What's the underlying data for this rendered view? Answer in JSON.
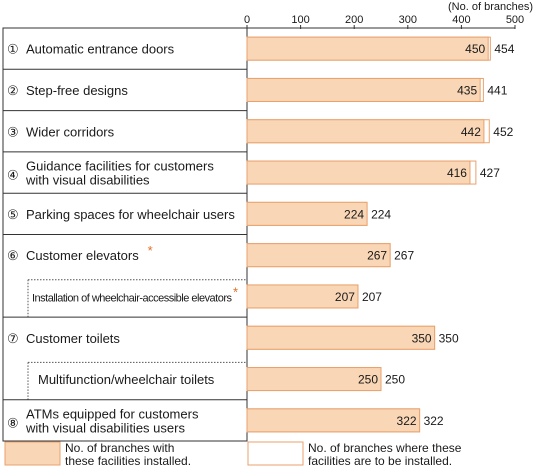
{
  "chart_data": {
    "type": "bar",
    "unit_label": "(No. of branches)",
    "xlim": [
      0,
      500
    ],
    "ticks": [
      "0",
      "100",
      "200",
      "300",
      "400",
      "500"
    ],
    "categories": [
      {
        "num": "①",
        "label": [
          "Automatic entrance doors"
        ],
        "installed": 450,
        "planned": 454,
        "star": false,
        "sub": false
      },
      {
        "num": "②",
        "label": [
          "Step-free designs"
        ],
        "installed": 435,
        "planned": 441,
        "star": false,
        "sub": false
      },
      {
        "num": "③",
        "label": [
          "Wider corridors"
        ],
        "installed": 442,
        "planned": 452,
        "star": false,
        "sub": false
      },
      {
        "num": "④",
        "label": [
          "Guidance facilities for customers",
          "with visual disabilities"
        ],
        "installed": 416,
        "planned": 427,
        "star": false,
        "sub": false
      },
      {
        "num": "⑤",
        "label": [
          "Parking spaces for wheelchair users"
        ],
        "installed": 224,
        "planned": 224,
        "star": false,
        "sub": false
      },
      {
        "num": "⑥",
        "label": [
          "Customer elevators"
        ],
        "installed": 267,
        "planned": 267,
        "star": true,
        "sub": false
      },
      {
        "num": "",
        "label": [
          "Installation of wheelchair-accessible elevators"
        ],
        "installed": 207,
        "planned": 207,
        "star": true,
        "sub": true
      },
      {
        "num": "⑦",
        "label": [
          "Customer toilets"
        ],
        "installed": 350,
        "planned": 350,
        "star": false,
        "sub": false
      },
      {
        "num": "",
        "label": [
          "Multifunction/wheelchair toilets"
        ],
        "installed": 250,
        "planned": 250,
        "star": false,
        "sub": true
      },
      {
        "num": "⑧",
        "label": [
          "ATMs equipped for customers",
          "with visual disabilities users"
        ],
        "installed": 322,
        "planned": 322,
        "star": false,
        "sub": false
      }
    ],
    "series": [
      {
        "name": "No. of branches with these facilities installed.",
        "key": "installed",
        "color": "#f9d6b5"
      },
      {
        "name": "No. of branches where these facilities are to be installed.",
        "key": "planned",
        "color": "#ffffff"
      }
    ],
    "legend": [
      {
        "lines": [
          "No. of branches with",
          "these facilities installed."
        ],
        "fill": "#f9d6b5"
      },
      {
        "lines": [
          "No. of branches where these",
          "facilities are to be installed."
        ],
        "fill": "#ffffff"
      }
    ],
    "colors": {
      "bar_fill": "#f9d6b5",
      "bar_stroke": "#e9a26d",
      "star": "#e07020"
    }
  }
}
